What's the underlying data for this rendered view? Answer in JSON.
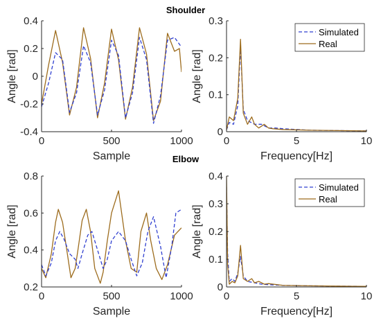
{
  "colors": {
    "simulated": "#2f3fd0",
    "real": "#9c6b1c",
    "axis": "#262626"
  },
  "titles": {
    "top": "Shoulder",
    "bottom": "Elbow"
  },
  "chart_data": [
    {
      "id": "shoulder-time",
      "type": "line",
      "title": "",
      "xlabel": "Sample",
      "ylabel": "Angle [rad]",
      "xlim": [
        0,
        1000
      ],
      "ylim": [
        -0.4,
        0.4
      ],
      "xticks": [
        0,
        500,
        1000
      ],
      "yticks": [
        -0.4,
        -0.2,
        0,
        0.2,
        0.4
      ],
      "ytick_labels": [
        "-0.4",
        "-0.2",
        "0",
        "0.2",
        "0.4"
      ],
      "grid": false,
      "legend": null,
      "series": [
        {
          "name": "Real",
          "color": "real",
          "dash": "",
          "x": [
            0,
            50,
            100,
            150,
            200,
            250,
            300,
            350,
            400,
            450,
            500,
            550,
            600,
            650,
            700,
            750,
            800,
            850,
            900,
            950,
            985,
            1000
          ],
          "y": [
            -0.2,
            0.08,
            0.33,
            0.1,
            -0.28,
            -0.08,
            0.35,
            0.13,
            -0.3,
            -0.05,
            0.34,
            0.12,
            -0.31,
            -0.08,
            0.35,
            0.16,
            -0.32,
            -0.18,
            0.31,
            0.18,
            0.2,
            0.03
          ]
        },
        {
          "name": "Simulated",
          "color": "simulated",
          "dash": "5,3",
          "x": [
            0,
            50,
            100,
            150,
            200,
            250,
            300,
            350,
            400,
            450,
            500,
            550,
            600,
            650,
            700,
            750,
            800,
            850,
            900,
            950,
            1000
          ],
          "y": [
            -0.22,
            -0.05,
            0.17,
            0.12,
            -0.26,
            -0.12,
            0.22,
            0.1,
            -0.28,
            -0.1,
            0.26,
            0.15,
            -0.3,
            -0.12,
            0.28,
            0.12,
            -0.34,
            -0.14,
            0.26,
            0.28,
            0.21
          ]
        }
      ]
    },
    {
      "id": "shoulder-freq",
      "type": "line",
      "title": "",
      "xlabel": "Frequency[Hz]",
      "ylabel": "Angle [rad]",
      "xlim": [
        0,
        10
      ],
      "ylim": [
        0,
        0.3
      ],
      "xticks": [
        0,
        5,
        10
      ],
      "yticks": [
        0,
        0.1,
        0.2,
        0.3
      ],
      "ytick_labels": [
        "0",
        "0.1",
        "0.2",
        "0.3"
      ],
      "grid": false,
      "legend": "top-right",
      "series": [
        {
          "name": "Simulated",
          "color": "simulated",
          "dash": "5,3",
          "x": [
            0,
            0.2,
            0.5,
            0.8,
            1.0,
            1.2,
            1.5,
            2,
            2.5,
            3,
            3.5,
            4,
            5,
            6,
            8,
            10
          ],
          "y": [
            0.005,
            0.025,
            0.02,
            0.07,
            0.23,
            0.06,
            0.03,
            0.02,
            0.02,
            0.01,
            0.01,
            0.008,
            0.006,
            0.004,
            0.003,
            0.002
          ]
        },
        {
          "name": "Real",
          "color": "real",
          "dash": "",
          "x": [
            0,
            0.2,
            0.5,
            0.8,
            1.0,
            1.2,
            1.5,
            1.8,
            2.0,
            2.3,
            2.7,
            3.0,
            3.3,
            4,
            5,
            6,
            8,
            10
          ],
          "y": [
            0.005,
            0.04,
            0.03,
            0.09,
            0.25,
            0.05,
            0.02,
            0.04,
            0.02,
            0.01,
            0.02,
            0.01,
            0.008,
            0.006,
            0.005,
            0.004,
            0.003,
            0.002
          ]
        }
      ]
    },
    {
      "id": "elbow-time",
      "type": "line",
      "title": "",
      "xlabel": "Sample",
      "ylabel": "Angle [rad]",
      "xlim": [
        0,
        1000
      ],
      "ylim": [
        0.2,
        0.8
      ],
      "xticks": [
        0,
        500,
        1000
      ],
      "yticks": [
        0.2,
        0.4,
        0.6,
        0.8
      ],
      "ytick_labels": [
        "0.2",
        "0.4",
        "0.6",
        "0.8"
      ],
      "grid": false,
      "legend": null,
      "series": [
        {
          "name": "Real",
          "color": "real",
          "dash": "",
          "x": [
            0,
            30,
            70,
            100,
            120,
            150,
            180,
            210,
            240,
            260,
            290,
            320,
            350,
            380,
            420,
            440,
            470,
            500,
            550,
            600,
            640,
            680,
            710,
            750,
            780,
            820,
            860,
            900,
            950,
            1000
          ],
          "y": [
            0.3,
            0.25,
            0.38,
            0.55,
            0.62,
            0.55,
            0.4,
            0.25,
            0.3,
            0.4,
            0.56,
            0.62,
            0.5,
            0.3,
            0.22,
            0.28,
            0.45,
            0.6,
            0.72,
            0.45,
            0.3,
            0.28,
            0.5,
            0.6,
            0.45,
            0.3,
            0.24,
            0.32,
            0.48,
            0.52
          ]
        },
        {
          "name": "Simulated",
          "color": "simulated",
          "dash": "5,3",
          "x": [
            0,
            30,
            70,
            100,
            130,
            160,
            200,
            240,
            260,
            290,
            330,
            360,
            400,
            440,
            470,
            500,
            550,
            600,
            640,
            680,
            720,
            760,
            800,
            850,
            890,
            930,
            960,
            1000
          ],
          "y": [
            0.32,
            0.26,
            0.33,
            0.45,
            0.5,
            0.46,
            0.38,
            0.35,
            0.3,
            0.38,
            0.48,
            0.5,
            0.4,
            0.3,
            0.35,
            0.45,
            0.5,
            0.45,
            0.35,
            0.26,
            0.33,
            0.5,
            0.58,
            0.42,
            0.25,
            0.42,
            0.6,
            0.62
          ]
        }
      ]
    },
    {
      "id": "elbow-freq",
      "type": "line",
      "title": "",
      "xlabel": "Frequency[Hz]",
      "ylabel": "Angle [rad]",
      "xlim": [
        0,
        10
      ],
      "ylim": [
        0,
        0.4
      ],
      "xticks": [
        0,
        5,
        10
      ],
      "yticks": [
        0,
        0.1,
        0.2,
        0.3,
        0.4
      ],
      "ytick_labels": [
        "0",
        "0.1",
        "0.2",
        "0.3",
        "0.4"
      ],
      "grid": false,
      "legend": "top-right",
      "series": [
        {
          "name": "Simulated",
          "color": "simulated",
          "dash": "5,3",
          "x": [
            0,
            0.08,
            0.2,
            0.4,
            0.6,
            0.8,
            1.0,
            1.2,
            1.5,
            2,
            2.5,
            3,
            4,
            5,
            6,
            8,
            10
          ],
          "y": [
            0.36,
            0.12,
            0.02,
            0.03,
            0.02,
            0.05,
            0.11,
            0.04,
            0.02,
            0.015,
            0.01,
            0.008,
            0.006,
            0.005,
            0.004,
            0.003,
            0.002
          ]
        },
        {
          "name": "Real",
          "color": "real",
          "dash": "",
          "x": [
            0,
            0.08,
            0.2,
            0.4,
            0.6,
            0.8,
            1.0,
            1.2,
            1.5,
            1.8,
            2.0,
            2.3,
            2.7,
            3.0,
            4,
            5,
            6,
            8,
            10
          ],
          "y": [
            0.4,
            0.08,
            0.01,
            0.02,
            0.015,
            0.04,
            0.15,
            0.03,
            0.02,
            0.03,
            0.015,
            0.02,
            0.01,
            0.012,
            0.006,
            0.005,
            0.004,
            0.003,
            0.002
          ]
        }
      ]
    }
  ]
}
